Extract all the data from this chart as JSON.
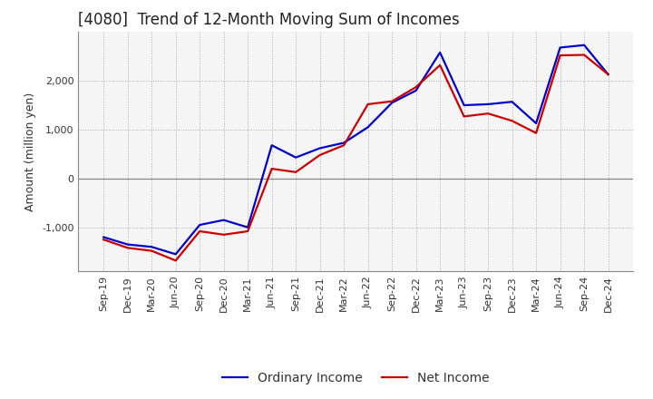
{
  "title": "[4080]  Trend of 12-Month Moving Sum of Incomes",
  "ylabel": "Amount (million yen)",
  "background_color": "#ffffff",
  "plot_bg_color": "#f5f5f5",
  "grid_color": "#aaaaaa",
  "line_color_ordinary": "#0000cc",
  "line_color_net": "#cc0000",
  "legend_ordinary": "Ordinary Income",
  "legend_net": "Net Income",
  "x_labels": [
    "Sep-19",
    "Dec-19",
    "Mar-20",
    "Jun-20",
    "Sep-20",
    "Dec-20",
    "Mar-21",
    "Jun-21",
    "Sep-21",
    "Dec-21",
    "Mar-22",
    "Jun-22",
    "Sep-22",
    "Dec-22",
    "Mar-23",
    "Jun-23",
    "Sep-23",
    "Dec-23",
    "Mar-24",
    "Jun-24",
    "Sep-24",
    "Dec-24"
  ],
  "ordinary_income": [
    -1200,
    -1350,
    -1400,
    -1550,
    -950,
    -850,
    -1000,
    680,
    430,
    620,
    730,
    1050,
    1550,
    1800,
    2580,
    1500,
    1520,
    1570,
    1130,
    2680,
    2730,
    2130
  ],
  "net_income": [
    -1250,
    -1420,
    -1480,
    -1680,
    -1080,
    -1150,
    -1080,
    200,
    130,
    480,
    680,
    1520,
    1580,
    1870,
    2320,
    1270,
    1330,
    1180,
    930,
    2520,
    2530,
    2130
  ],
  "ylim": [
    -1900,
    3000
  ],
  "yticks": [
    -1000,
    0,
    1000,
    2000
  ],
  "line_width": 1.6,
  "title_fontsize": 12,
  "axis_fontsize": 9,
  "tick_fontsize": 8
}
